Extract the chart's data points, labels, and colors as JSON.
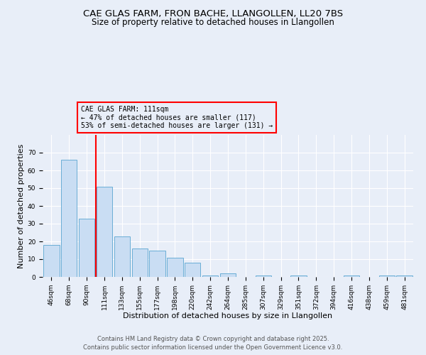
{
  "title1": "CAE GLAS FARM, FRON BACHE, LLANGOLLEN, LL20 7BS",
  "title2": "Size of property relative to detached houses in Llangollen",
  "xlabel": "Distribution of detached houses by size in Llangollen",
  "ylabel": "Number of detached properties",
  "categories": [
    "46sqm",
    "68sqm",
    "90sqm",
    "111sqm",
    "133sqm",
    "155sqm",
    "177sqm",
    "198sqm",
    "220sqm",
    "242sqm",
    "264sqm",
    "285sqm",
    "307sqm",
    "329sqm",
    "351sqm",
    "372sqm",
    "394sqm",
    "416sqm",
    "438sqm",
    "459sqm",
    "481sqm"
  ],
  "values": [
    18,
    66,
    33,
    51,
    23,
    16,
    15,
    11,
    8,
    1,
    2,
    0,
    1,
    0,
    1,
    0,
    0,
    1,
    0,
    1,
    1
  ],
  "bar_color": "#c9ddf3",
  "bar_edge_color": "#6aaed6",
  "red_line_index": 3,
  "annotation_text": "CAE GLAS FARM: 111sqm\n← 47% of detached houses are smaller (117)\n53% of semi-detached houses are larger (131) →",
  "annotation_fontsize": 7,
  "ylim": [
    0,
    80
  ],
  "yticks": [
    0,
    10,
    20,
    30,
    40,
    50,
    60,
    70
  ],
  "background_color": "#e8eef8",
  "footer1": "Contains HM Land Registry data © Crown copyright and database right 2025.",
  "footer2": "Contains public sector information licensed under the Open Government Licence v3.0.",
  "title_fontsize": 9.5,
  "subtitle_fontsize": 8.5,
  "axis_label_fontsize": 8,
  "tick_fontsize": 6.5,
  "footer_fontsize": 6
}
